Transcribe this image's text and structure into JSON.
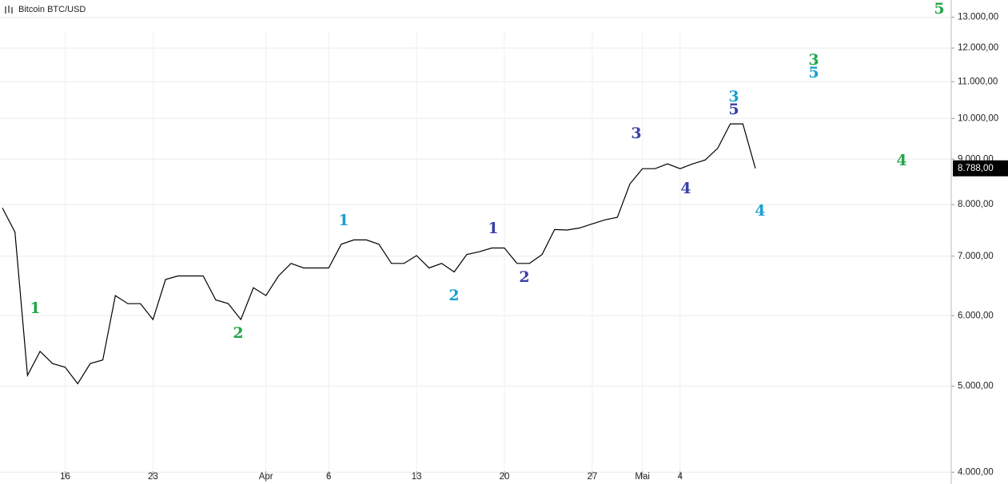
{
  "chart_data": {
    "type": "line",
    "title": "Bitcoin BTC/USD",
    "log_scale": true,
    "grid": true,
    "color": "#000000",
    "categories": [
      null,
      null,
      null,
      null,
      null,
      "16",
      null,
      null,
      null,
      null,
      null,
      null,
      "23",
      null,
      null,
      null,
      null,
      null,
      null,
      null,
      null,
      "Apr",
      null,
      null,
      null,
      null,
      "6",
      null,
      null,
      null,
      null,
      null,
      null,
      "13",
      null,
      null,
      null,
      null,
      null,
      null,
      "20",
      null,
      null,
      null,
      null,
      null,
      null,
      "27",
      null,
      null,
      null,
      "Mai",
      null,
      null,
      "4",
      null,
      null,
      null,
      null,
      null,
      null,
      null,
      null,
      null,
      null,
      null,
      null,
      null,
      null,
      null,
      null,
      null,
      null,
      null,
      null,
      null
    ],
    "values": [
      7930,
      7450,
      5140,
      5470,
      5300,
      5250,
      5030,
      5300,
      5350,
      6320,
      6190,
      6190,
      5940,
      6590,
      6650,
      6650,
      6650,
      6250,
      6190,
      5940,
      6450,
      6320,
      6650,
      6870,
      6790,
      6790,
      6790,
      7220,
      7300,
      7300,
      7220,
      6870,
      6870,
      7010,
      6790,
      6870,
      6720,
      7030,
      7080,
      7150,
      7150,
      6870,
      6870,
      7030,
      7500,
      7490,
      7530,
      7610,
      7690,
      7740,
      8440,
      8780,
      8780,
      8890,
      8780,
      8890,
      8980,
      9260,
      9860,
      9860,
      8788,
      null,
      null,
      null,
      null,
      null,
      null,
      null,
      null,
      null,
      null,
      null,
      null,
      null,
      null,
      null
    ],
    "ylim": [
      3880,
      13590
    ],
    "yticks": [
      {
        "value": 4000,
        "label": "4.000,00"
      },
      {
        "value": 5000,
        "label": "5.000,00"
      },
      {
        "value": 6000,
        "label": "6.000,00"
      },
      {
        "value": 7000,
        "label": "7.000,00"
      },
      {
        "value": 8000,
        "label": "8.000,00"
      },
      {
        "value": 9000,
        "label": "9.000,00"
      },
      {
        "value": 10000,
        "label": "10.000,00"
      },
      {
        "value": 11000,
        "label": "11.000,00"
      },
      {
        "value": 12000,
        "label": "12.000,00"
      },
      {
        "value": 13000,
        "label": "13.000,00"
      }
    ],
    "last_price": {
      "value": 8788,
      "label": "8.788,00"
    },
    "annotations": [
      {
        "text": "5",
        "color": "#1fa64a"
      },
      {
        "text": "3",
        "color": "#1fa64a"
      },
      {
        "text": "5",
        "color": "#1a9fd0"
      },
      {
        "text": "4",
        "color": "#1fa64a"
      },
      {
        "text": "3",
        "color": "#1a9fd0"
      },
      {
        "text": "5",
        "color": "#3a3fa8"
      },
      {
        "text": "3",
        "color": "#3a3fa8"
      },
      {
        "text": "4",
        "color": "#3a3fa8"
      },
      {
        "text": "4",
        "color": "#1a9fd0"
      },
      {
        "text": "1",
        "color": "#1a9fd0"
      },
      {
        "text": "1",
        "color": "#3a3fa8"
      },
      {
        "text": "2",
        "color": "#3a3fa8"
      },
      {
        "text": "2",
        "color": "#1a9fd0"
      },
      {
        "text": "1",
        "color": "#1fa64a"
      },
      {
        "text": "2",
        "color": "#1fa64a"
      }
    ]
  }
}
